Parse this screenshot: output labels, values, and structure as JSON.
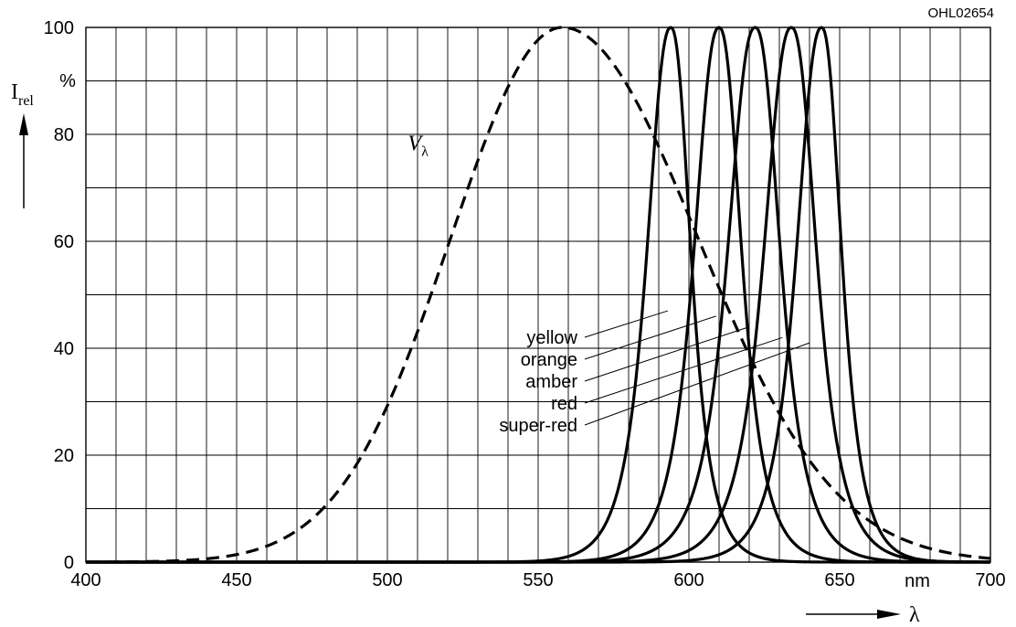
{
  "figure_code": "OHL02654",
  "chart_data": {
    "type": "line",
    "xlim": [
      400,
      700
    ],
    "ylim": [
      0,
      100
    ],
    "x_ticks": [
      400,
      450,
      500,
      550,
      600,
      650,
      700
    ],
    "y_ticks": [
      0,
      20,
      40,
      60,
      80,
      100
    ],
    "x_unit": "nm",
    "y_unit": "%",
    "xlabel": "λ",
    "ylabel": "I",
    "ylabel_sub": "rel",
    "grid": true,
    "series": [
      {
        "name": "V",
        "name_sub": "λ",
        "style": "dashed",
        "peak": 558,
        "width_left": 37,
        "width_right": 45,
        "annotation_at": [
          518,
          77
        ]
      },
      {
        "name": "yellow",
        "style": "solid",
        "peak": 594,
        "width_left": 9.5,
        "width_right": 8
      },
      {
        "name": "orange",
        "style": "solid",
        "peak": 610,
        "width_left": 10,
        "width_right": 9
      },
      {
        "name": "amber",
        "style": "solid",
        "peak": 622,
        "width_left": 11,
        "width_right": 10
      },
      {
        "name": "red",
        "style": "solid",
        "peak": 634,
        "width_left": 11,
        "width_right": 10
      },
      {
        "name": "super-red",
        "style": "solid",
        "peak": 644,
        "width_left": 10,
        "width_right": 8
      }
    ],
    "legend_leaders": [
      {
        "label": "yellow",
        "target": [
          593,
          47
        ]
      },
      {
        "label": "orange",
        "target": [
          609,
          46
        ]
      },
      {
        "label": "amber",
        "target": [
          620,
          44
        ]
      },
      {
        "label": "red",
        "target": [
          631,
          42
        ]
      },
      {
        "label": "super-red",
        "target": [
          640,
          41
        ]
      }
    ],
    "colors": {
      "line": "#000000",
      "grid": "#000000"
    }
  }
}
